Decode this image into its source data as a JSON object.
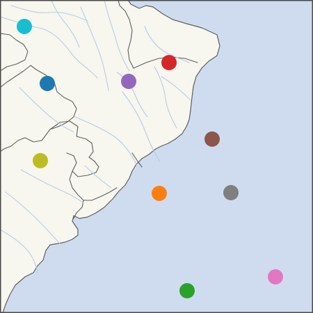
{
  "map": {
    "markers": [
      {
        "id": "cyan",
        "color": "#17becf"
      },
      {
        "id": "red",
        "color": "#d62728"
      },
      {
        "id": "blue",
        "color": "#1f77b4"
      },
      {
        "id": "purple",
        "color": "#9467bd"
      },
      {
        "id": "brown",
        "color": "#8c564b"
      },
      {
        "id": "olive",
        "color": "#bcbd22"
      },
      {
        "id": "orange",
        "color": "#ff7f0e"
      },
      {
        "id": "gray",
        "color": "#7f7f7f"
      },
      {
        "id": "pink",
        "color": "#e377c2"
      },
      {
        "id": "green",
        "color": "#2ca02c"
      }
    ]
  }
}
